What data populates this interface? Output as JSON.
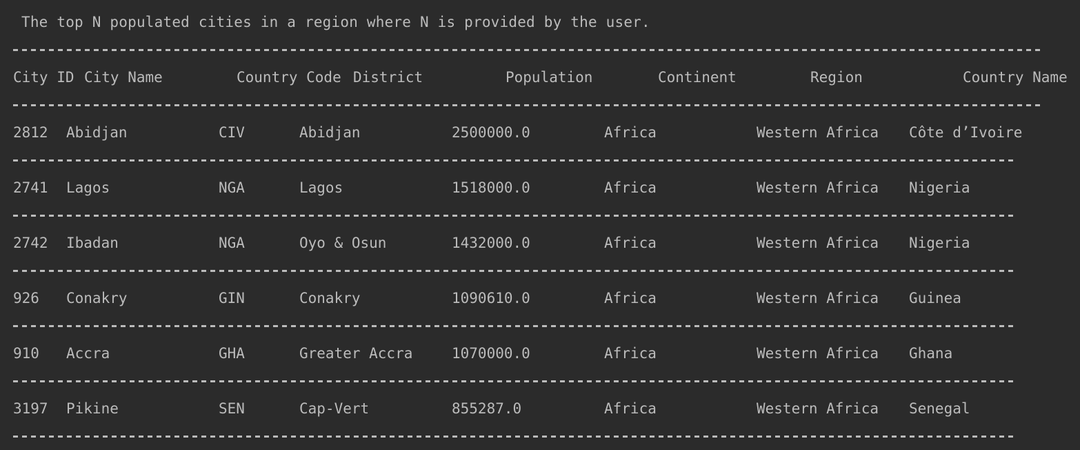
{
  "console": {
    "title": "The top N populated cities in a region where N is provided by the user.",
    "headers": {
      "city_id": "City ID",
      "city_name": "City Name",
      "country_code": "Country Code",
      "district": "District",
      "population": "Population",
      "continent": "Continent",
      "region": "Region",
      "country_name": "Country Name"
    },
    "rows": [
      {
        "city_id": "2812",
        "city_name": "Abidjan",
        "country_code": "CIV",
        "district": "Abidjan",
        "population": "2500000.0",
        "continent": "Africa",
        "region": "Western Africa",
        "country_name": "Côte d’Ivoire"
      },
      {
        "city_id": "2741",
        "city_name": "Lagos",
        "country_code": "NGA",
        "district": "Lagos",
        "population": "1518000.0",
        "continent": "Africa",
        "region": "Western Africa",
        "country_name": "Nigeria"
      },
      {
        "city_id": "2742",
        "city_name": "Ibadan",
        "country_code": "NGA",
        "district": "Oyo & Osun",
        "population": "1432000.0",
        "continent": "Africa",
        "region": "Western Africa",
        "country_name": "Nigeria"
      },
      {
        "city_id": "926",
        "city_name": "Conakry",
        "country_code": "GIN",
        "district": "Conakry",
        "population": "1090610.0",
        "continent": "Africa",
        "region": "Western Africa",
        "country_name": "Guinea"
      },
      {
        "city_id": "910",
        "city_name": "Accra",
        "country_code": "GHA",
        "district": "Greater Accra",
        "population": "1070000.0",
        "continent": "Africa",
        "region": "Western Africa",
        "country_name": "Ghana"
      },
      {
        "city_id": "3197",
        "city_name": "Pikine",
        "country_code": "SEN",
        "district": "Cap-Vert",
        "population": "855287.0",
        "continent": "Africa",
        "region": "Western Africa",
        "country_name": "Senegal"
      }
    ]
  }
}
